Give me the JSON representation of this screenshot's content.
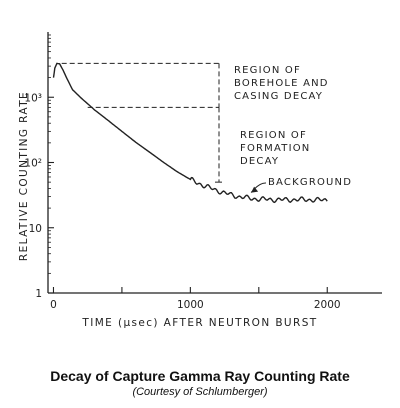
{
  "chart_data": {
    "type": "line",
    "title": "",
    "xlabel": "TIME (μsec) AFTER NEUTRON BURST",
    "ylabel": "RELATIVE COUNTING RATE",
    "xlim": [
      -40,
      2400
    ],
    "ylim": [
      1,
      10000
    ],
    "yscale": "log",
    "x_ticks": [
      {
        "value": 0,
        "label": "0"
      },
      {
        "value": 500,
        "label": ""
      },
      {
        "value": 1000,
        "label": "1000"
      },
      {
        "value": 1500,
        "label": ""
      },
      {
        "value": 2000,
        "label": "2000"
      }
    ],
    "y_ticks": [
      {
        "value": 1,
        "label": "1"
      },
      {
        "value": 10,
        "label": "10"
      },
      {
        "value": 100,
        "label": "10²"
      },
      {
        "value": 1000,
        "label": "10³"
      }
    ],
    "series": [
      {
        "points": [
          [
            0,
            2000
          ],
          [
            10,
            2800
          ],
          [
            25,
            3300
          ],
          [
            45,
            3250
          ],
          [
            70,
            2600
          ],
          [
            100,
            1900
          ],
          [
            140,
            1300
          ],
          [
            200,
            980
          ],
          [
            260,
            760
          ],
          [
            300,
            640
          ],
          [
            400,
            440
          ],
          [
            500,
            300
          ],
          [
            600,
            205
          ],
          [
            700,
            145
          ],
          [
            800,
            102
          ],
          [
            900,
            73
          ],
          [
            1000,
            55
          ],
          [
            1100,
            44
          ],
          [
            1200,
            37
          ],
          [
            1250,
            34
          ],
          [
            1300,
            32
          ],
          [
            1350,
            30
          ],
          [
            1400,
            29
          ],
          [
            1450,
            28
          ],
          [
            1500,
            27.5
          ],
          [
            1600,
            27
          ],
          [
            1700,
            26.8
          ],
          [
            1800,
            27
          ],
          [
            1900,
            26.8
          ],
          [
            2000,
            26.5
          ]
        ],
        "noise_from": 1000
      }
    ],
    "annotations": [
      {
        "id": "borehole",
        "lines": [
          "REGION OF",
          "BOREHOLE AND",
          "CASING DECAY"
        ],
        "y_top": 3300,
        "y_bottom": 700,
        "x_start": 60
      },
      {
        "id": "formation",
        "lines": [
          "REGION OF",
          "FORMATION",
          "DECAY"
        ],
        "y_top": 700,
        "y_bottom": 50,
        "x_start": 250
      },
      {
        "id": "background",
        "lines": [
          "BACKGROUND"
        ],
        "arrow_to": [
          1400,
          30
        ]
      }
    ]
  },
  "caption": {
    "title": "Decay of Capture Gamma Ray Counting Rate",
    "subtitle": "(Courtesy of Schlumberger)"
  }
}
